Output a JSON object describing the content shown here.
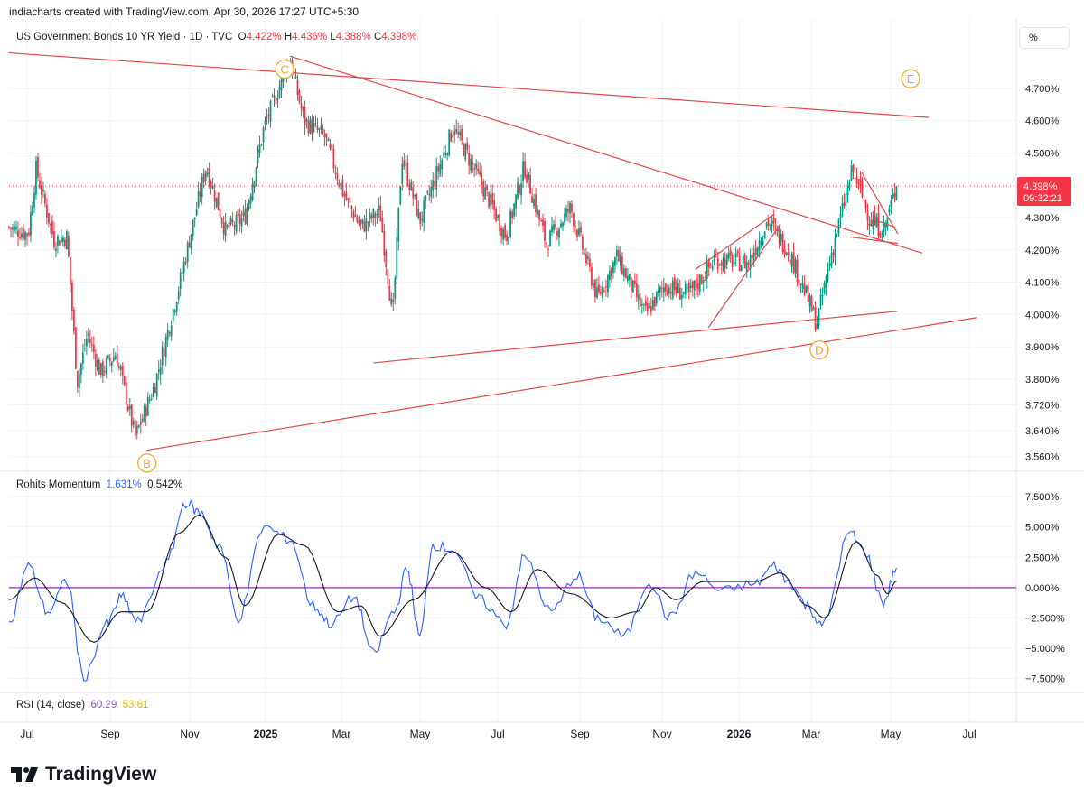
{
  "header": {
    "credit": "indiacharts created with TradingView.com, Apr 30, 2026 17:27 UTC+5:30",
    "symbol": "US Government Bonds 10 YR Yield · 1D · TVC",
    "ohlc": [
      {
        "k": "O",
        "v": "4.422%"
      },
      {
        "k": "H",
        "v": "4.436%"
      },
      {
        "k": "L",
        "v": "4.388%"
      },
      {
        "k": "C",
        "v": "4.398%"
      }
    ],
    "scale_button": "%"
  },
  "price_pane": {
    "y_ticks": [
      "4.700%",
      "4.600%",
      "4.500%",
      "4.300%",
      "4.200%",
      "4.100%",
      "4.000%",
      "3.900%",
      "3.800%",
      "3.720%",
      "3.640%",
      "3.560%"
    ],
    "current_price": "4.398%",
    "countdown": "09:32:21",
    "wave_labels": [
      "B",
      "C",
      "D",
      "E"
    ]
  },
  "momentum_pane": {
    "name": "Rohits Momentum",
    "value1": "1.631%",
    "value2": "0.542%",
    "y_ticks": [
      "7.500%",
      "5.000%",
      "2.500%",
      "0.000%",
      "−2.500%",
      "−5.000%",
      "−7.500%"
    ]
  },
  "rsi_pane": {
    "name": "RSI (14, close)",
    "value1": "60.29",
    "value2": "53.61"
  },
  "x_axis": [
    "Jul",
    "Sep",
    "Nov",
    "2025",
    "Mar",
    "May",
    "Jul",
    "Sep",
    "Nov",
    "2026",
    "Mar",
    "May",
    "Jul"
  ],
  "brand": "TradingView",
  "colors": {
    "up": "#089981",
    "down": "#f23645",
    "trendline": "#e04848",
    "wave_label": "#f5a623",
    "momentum_fast": "#2962ff",
    "momentum_slow": "#131722",
    "zero_line": "#9c27b0"
  },
  "chart_data": [
    {
      "type": "candlestick",
      "title": "US Government Bonds 10 YR Yield · 1D · TVC",
      "ylim": [
        3.52,
        4.82
      ],
      "x_range": [
        "2024-06-10",
        "2026-08-01"
      ],
      "close_path": [
        {
          "x": "2024-06-10",
          "y": 4.27
        },
        {
          "x": "2024-06-25",
          "y": 4.25
        },
        {
          "x": "2024-07-01",
          "y": 4.45
        },
        {
          "x": "2024-07-15",
          "y": 4.23
        },
        {
          "x": "2024-07-25",
          "y": 4.24
        },
        {
          "x": "2024-08-02",
          "y": 3.79
        },
        {
          "x": "2024-08-10",
          "y": 3.94
        },
        {
          "x": "2024-08-20",
          "y": 3.82
        },
        {
          "x": "2024-09-01",
          "y": 3.88
        },
        {
          "x": "2024-09-16",
          "y": 3.62
        },
        {
          "x": "2024-10-01",
          "y": 3.78
        },
        {
          "x": "2024-10-20",
          "y": 4.09
        },
        {
          "x": "2024-11-01",
          "y": 4.3
        },
        {
          "x": "2024-11-10",
          "y": 4.46
        },
        {
          "x": "2024-11-25",
          "y": 4.26
        },
        {
          "x": "2024-12-10",
          "y": 4.3
        },
        {
          "x": "2024-12-25",
          "y": 4.58
        },
        {
          "x": "2025-01-14",
          "y": 4.79
        },
        {
          "x": "2025-01-25",
          "y": 4.6
        },
        {
          "x": "2025-02-10",
          "y": 4.55
        },
        {
          "x": "2025-02-25",
          "y": 4.37
        },
        {
          "x": "2025-03-10",
          "y": 4.27
        },
        {
          "x": "2025-03-25",
          "y": 4.32
        },
        {
          "x": "2025-04-04",
          "y": 3.99
        },
        {
          "x": "2025-04-11",
          "y": 4.49
        },
        {
          "x": "2025-04-25",
          "y": 4.29
        },
        {
          "x": "2025-05-21",
          "y": 4.58
        },
        {
          "x": "2025-06-10",
          "y": 4.42
        },
        {
          "x": "2025-07-01",
          "y": 4.24
        },
        {
          "x": "2025-07-15",
          "y": 4.46
        },
        {
          "x": "2025-08-01",
          "y": 4.22
        },
        {
          "x": "2025-08-20",
          "y": 4.33
        },
        {
          "x": "2025-09-10",
          "y": 4.05
        },
        {
          "x": "2025-09-25",
          "y": 4.18
        },
        {
          "x": "2025-10-17",
          "y": 4.0
        },
        {
          "x": "2025-11-01",
          "y": 4.09
        },
        {
          "x": "2025-11-20",
          "y": 4.06
        },
        {
          "x": "2025-12-10",
          "y": 4.17
        },
        {
          "x": "2026-01-05",
          "y": 4.16
        },
        {
          "x": "2026-01-20",
          "y": 4.29
        },
        {
          "x": "2026-02-05",
          "y": 4.2
        },
        {
          "x": "2026-02-20",
          "y": 4.05
        },
        {
          "x": "2026-02-27",
          "y": 3.97
        },
        {
          "x": "2026-03-10",
          "y": 4.18
        },
        {
          "x": "2026-03-27",
          "y": 4.45
        },
        {
          "x": "2026-04-10",
          "y": 4.29
        },
        {
          "x": "2026-04-20",
          "y": 4.26
        },
        {
          "x": "2026-04-30",
          "y": 4.398
        }
      ],
      "trendlines": [
        {
          "from": {
            "x": "2024-06-10",
            "y": 4.81
          },
          "to": {
            "x": "2026-05-25",
            "y": 4.61
          }
        },
        {
          "from": {
            "x": "2025-01-14",
            "y": 4.8
          },
          "to": {
            "x": "2026-05-20",
            "y": 4.19
          }
        },
        {
          "from": {
            "x": "2024-09-25",
            "y": 3.58
          },
          "to": {
            "x": "2026-07-01",
            "y": 3.99
          }
        },
        {
          "from": {
            "x": "2025-03-20",
            "y": 3.85
          },
          "to": {
            "x": "2026-05-01",
            "y": 4.01
          }
        },
        {
          "from": {
            "x": "2025-11-25",
            "y": 4.14
          },
          "to": {
            "x": "2026-01-25",
            "y": 4.31
          }
        },
        {
          "from": {
            "x": "2025-12-05",
            "y": 3.96
          },
          "to": {
            "x": "2026-01-30",
            "y": 4.28
          }
        },
        {
          "from": {
            "x": "2026-04-15",
            "y": 4.29
          },
          "to": {
            "x": "2026-04-29",
            "y": 4.27
          }
        },
        {
          "from": {
            "x": "2026-03-25",
            "y": 4.24
          },
          "to": {
            "x": "2026-05-01",
            "y": 4.22
          }
        },
        {
          "from": {
            "x": "2026-04-03",
            "y": 4.44
          },
          "to": {
            "x": "2026-05-01",
            "y": 4.25
          }
        }
      ],
      "wave_points": [
        {
          "label": "B",
          "x": "2024-09-25",
          "y": 3.54
        },
        {
          "label": "C",
          "x": "2025-01-10",
          "y": 4.76
        },
        {
          "label": "D",
          "x": "2026-03-01",
          "y": 3.89
        },
        {
          "label": "E",
          "x": "2026-05-11",
          "y": 4.73
        }
      ],
      "current": 4.398
    },
    {
      "type": "line",
      "title": "Rohits Momentum",
      "ylim": [
        -8.5,
        9.0
      ],
      "series": [
        {
          "name": "1.631%",
          "points": [
            {
              "x": "2024-06-10",
              "y": -3.0
            },
            {
              "x": "2024-06-25",
              "y": 1.8
            },
            {
              "x": "2024-07-10",
              "y": -2.0
            },
            {
              "x": "2024-07-25",
              "y": 0.5
            },
            {
              "x": "2024-08-07",
              "y": -7.4
            },
            {
              "x": "2024-08-25",
              "y": -3.0
            },
            {
              "x": "2024-09-05",
              "y": -0.8
            },
            {
              "x": "2024-09-18",
              "y": -2.8
            },
            {
              "x": "2024-10-10",
              "y": 2.0
            },
            {
              "x": "2024-10-25",
              "y": 7.0
            },
            {
              "x": "2024-11-05",
              "y": 6.2
            },
            {
              "x": "2024-11-20",
              "y": 3.5
            },
            {
              "x": "2024-12-05",
              "y": -2.5
            },
            {
              "x": "2024-12-25",
              "y": 5.0
            },
            {
              "x": "2025-01-14",
              "y": 4.0
            },
            {
              "x": "2025-02-01",
              "y": -1.5
            },
            {
              "x": "2025-02-15",
              "y": -3.0
            },
            {
              "x": "2025-03-05",
              "y": -0.8
            },
            {
              "x": "2025-03-20",
              "y": -5.5
            },
            {
              "x": "2025-04-05",
              "y": -2.0
            },
            {
              "x": "2025-04-15",
              "y": 1.5
            },
            {
              "x": "2025-04-25",
              "y": -4.0
            },
            {
              "x": "2025-05-05",
              "y": 3.5
            },
            {
              "x": "2025-05-20",
              "y": 3.2
            },
            {
              "x": "2025-06-10",
              "y": -1.0
            },
            {
              "x": "2025-07-01",
              "y": -3.0
            },
            {
              "x": "2025-07-15",
              "y": 2.5
            },
            {
              "x": "2025-08-05",
              "y": -2.0
            },
            {
              "x": "2025-08-25",
              "y": 1.0
            },
            {
              "x": "2025-09-10",
              "y": -2.5
            },
            {
              "x": "2025-10-01",
              "y": -4.0
            },
            {
              "x": "2025-10-20",
              "y": 0.5
            },
            {
              "x": "2025-11-05",
              "y": -2.5
            },
            {
              "x": "2025-11-25",
              "y": 1.2
            },
            {
              "x": "2025-12-15",
              "y": -0.3
            },
            {
              "x": "2026-01-10",
              "y": 0.3
            },
            {
              "x": "2026-01-25",
              "y": 1.8
            },
            {
              "x": "2026-02-05",
              "y": 0.5
            },
            {
              "x": "2026-02-20",
              "y": -1.5
            },
            {
              "x": "2026-03-03",
              "y": -3.2
            },
            {
              "x": "2026-03-25",
              "y": 4.5
            },
            {
              "x": "2026-04-05",
              "y": 3.0
            },
            {
              "x": "2026-04-20",
              "y": -1.2
            },
            {
              "x": "2026-04-30",
              "y": 1.631
            }
          ]
        },
        {
          "name": "0.542%",
          "points": [
            {
              "x": "2024-06-10",
              "y": -1.0
            },
            {
              "x": "2024-06-30",
              "y": 0.8
            },
            {
              "x": "2024-07-20",
              "y": -1.2
            },
            {
              "x": "2024-08-15",
              "y": -4.5
            },
            {
              "x": "2024-09-05",
              "y": -2.0
            },
            {
              "x": "2024-09-25",
              "y": -2.0
            },
            {
              "x": "2024-10-20",
              "y": 4.5
            },
            {
              "x": "2024-11-05",
              "y": 6.0
            },
            {
              "x": "2024-11-25",
              "y": 2.5
            },
            {
              "x": "2024-12-10",
              "y": -1.5
            },
            {
              "x": "2025-01-05",
              "y": 4.4
            },
            {
              "x": "2025-01-25",
              "y": 3.5
            },
            {
              "x": "2025-02-20",
              "y": -2.0
            },
            {
              "x": "2025-03-10",
              "y": -1.5
            },
            {
              "x": "2025-03-25",
              "y": -4.0
            },
            {
              "x": "2025-04-20",
              "y": -1.0
            },
            {
              "x": "2025-05-20",
              "y": 3.0
            },
            {
              "x": "2025-06-15",
              "y": 0.0
            },
            {
              "x": "2025-07-05",
              "y": -2.0
            },
            {
              "x": "2025-07-25",
              "y": 1.5
            },
            {
              "x": "2025-08-20",
              "y": -0.5
            },
            {
              "x": "2025-09-20",
              "y": -2.5
            },
            {
              "x": "2025-10-10",
              "y": -2.0
            },
            {
              "x": "2025-10-25",
              "y": 0.0
            },
            {
              "x": "2025-11-10",
              "y": -1.0
            },
            {
              "x": "2025-12-01",
              "y": 0.5
            },
            {
              "x": "2026-01-10",
              "y": 0.5
            },
            {
              "x": "2026-01-30",
              "y": 1.2
            },
            {
              "x": "2026-02-20",
              "y": -1.5
            },
            {
              "x": "2026-03-05",
              "y": -2.5
            },
            {
              "x": "2026-03-30",
              "y": 3.8
            },
            {
              "x": "2026-04-15",
              "y": 1.0
            },
            {
              "x": "2026-04-23",
              "y": -0.5
            },
            {
              "x": "2026-04-30",
              "y": 0.542
            }
          ]
        }
      ],
      "zero_line": 0
    }
  ]
}
